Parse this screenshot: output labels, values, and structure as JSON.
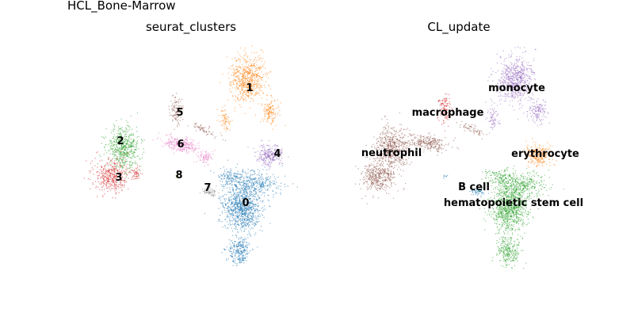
{
  "figure": {
    "suptitle": "HCL_Bone-Marrow"
  },
  "chart_data": [
    {
      "type": "scatter",
      "title": "seurat_clusters",
      "grid": false,
      "axes_visible": false,
      "labels_on_data": true,
      "clusters": [
        {
          "label": "0",
          "color": "#1f77b4"
        },
        {
          "label": "1",
          "color": "#ff7f0e"
        },
        {
          "label": "2",
          "color": "#2ca02c"
        },
        {
          "label": "3",
          "color": "#d62728"
        },
        {
          "label": "4",
          "color": "#9467bd"
        },
        {
          "label": "5",
          "color": "#8c564b"
        },
        {
          "label": "6",
          "color": "#e377c2"
        },
        {
          "label": "7",
          "color": "#7f7f7f"
        },
        {
          "label": "8",
          "color": "#bcbd22"
        }
      ]
    },
    {
      "type": "scatter",
      "title": "CL_update",
      "grid": false,
      "axes_visible": false,
      "labels_on_data": true,
      "clusters": [
        {
          "label": "monocyte",
          "color": "#9467bd"
        },
        {
          "label": "macrophage",
          "color": "#d62728"
        },
        {
          "label": "neutrophil",
          "color": "#8c564b"
        },
        {
          "label": "erythrocyte",
          "color": "#ff7f0e"
        },
        {
          "label": "B cell",
          "color": "#1f77b4"
        },
        {
          "label": "hematopoietic stem cell",
          "color": "#2ca02c"
        }
      ]
    }
  ]
}
